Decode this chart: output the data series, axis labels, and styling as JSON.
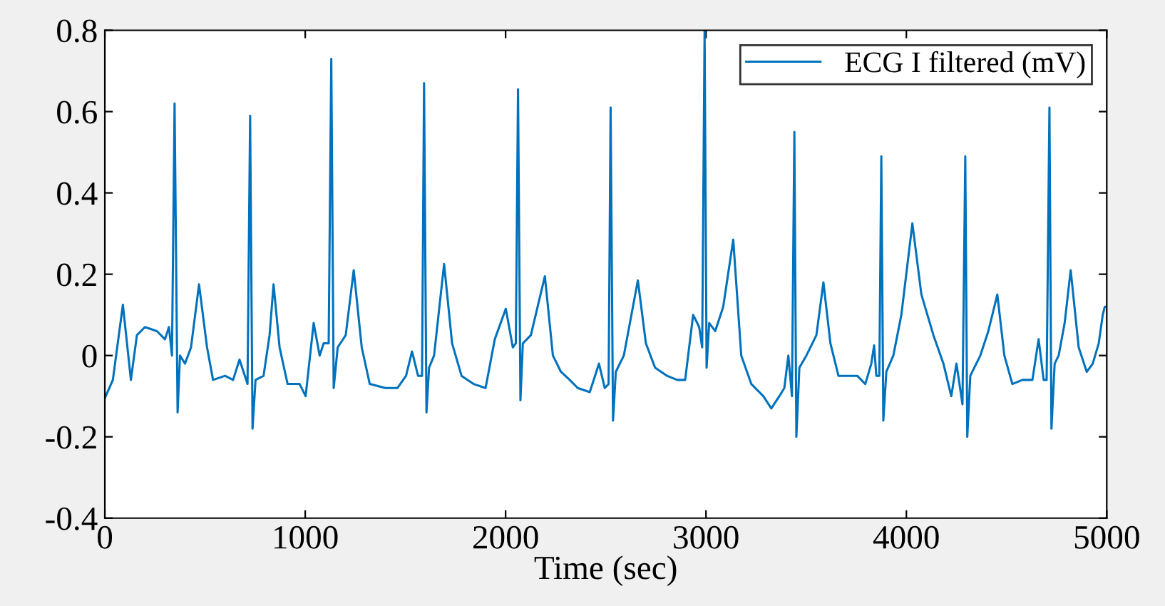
{
  "chart_data": {
    "type": "line",
    "xlabel": "Time (sec)",
    "xlim": [
      0,
      5000
    ],
    "xticks": [
      0,
      1000,
      2000,
      3000,
      4000,
      5000
    ],
    "ylim": [
      -0.4,
      0.8
    ],
    "yticks": [
      -0.4,
      -0.2,
      0,
      0.2,
      0.4,
      0.6,
      0.8
    ],
    "grid": false,
    "legend": "top right",
    "marker": "none",
    "line_style": "solid",
    "series": [
      {
        "name": "ECG I filtered (mV)",
        "color": "#0072bd",
        "x": [
          0,
          40,
          90,
          130,
          160,
          200,
          260,
          300,
          320,
          335,
          348,
          363,
          375,
          400,
          430,
          470,
          510,
          540,
          600,
          640,
          672,
          692,
          712,
          725,
          737,
          752,
          792,
          822,
          842,
          872,
          912,
          972,
          1002,
          1042,
          1072,
          1092,
          1117,
          1130,
          1142,
          1162,
          1202,
          1242,
          1282,
          1322,
          1400,
          1460,
          1503,
          1533,
          1563,
          1583,
          1593,
          1605,
          1618,
          1643,
          1693,
          1733,
          1780,
          1840,
          1900,
          1946,
          2001,
          2036,
          2051,
          2062,
          2074,
          2086,
          2126,
          2196,
          2236,
          2276,
          2320,
          2360,
          2420,
          2466,
          2495,
          2514,
          2524,
          2536,
          2550,
          2590,
          2660,
          2700,
          2746,
          2806,
          2856,
          2896,
          2936,
          2966,
          2981,
          2993,
          3003,
          3016,
          3046,
          3086,
          3136,
          3176,
          3226,
          3286,
          3326,
          3366,
          3391,
          3411,
          3429,
          3441,
          3451,
          3466,
          3501,
          3551,
          3586,
          3621,
          3661,
          3711,
          3755,
          3795,
          3825,
          3839,
          3850,
          3865,
          3875,
          3885,
          3900,
          3935,
          3975,
          4030,
          4075,
          4135,
          4185,
          4224,
          4250,
          4280,
          4294,
          4304,
          4319,
          4369,
          4409,
          4454,
          4489,
          4529,
          4579,
          4629,
          4660,
          4685,
          4700,
          4714,
          4724,
          4740,
          4760,
          4790,
          4820,
          4860,
          4900,
          4930,
          4960,
          4980,
          4990,
          5000
        ],
        "values": [
          -0.105,
          -0.06,
          0.125,
          -0.06,
          0.05,
          0.07,
          0.06,
          0.04,
          0.07,
          0.0,
          0.62,
          -0.14,
          0.0,
          -0.02,
          0.02,
          0.175,
          0.02,
          -0.06,
          -0.05,
          -0.06,
          -0.01,
          -0.04,
          -0.07,
          0.59,
          -0.18,
          -0.06,
          -0.05,
          0.05,
          0.175,
          0.02,
          -0.07,
          -0.07,
          -0.1,
          0.08,
          0.0,
          0.03,
          0.03,
          0.73,
          -0.08,
          0.02,
          0.05,
          0.21,
          0.02,
          -0.07,
          -0.08,
          -0.08,
          -0.05,
          0.01,
          -0.05,
          -0.05,
          0.67,
          -0.14,
          -0.03,
          0.0,
          0.225,
          0.03,
          -0.05,
          -0.07,
          -0.08,
          0.04,
          0.115,
          0.02,
          0.03,
          0.655,
          -0.11,
          0.03,
          0.05,
          0.195,
          0.0,
          -0.04,
          -0.06,
          -0.08,
          -0.09,
          -0.02,
          -0.08,
          -0.07,
          0.61,
          -0.16,
          -0.04,
          0.0,
          0.185,
          0.03,
          -0.03,
          -0.05,
          -0.06,
          -0.06,
          0.1,
          0.07,
          0.02,
          0.8,
          -0.03,
          0.08,
          0.06,
          0.12,
          0.285,
          0.0,
          -0.07,
          -0.1,
          -0.13,
          -0.1,
          -0.08,
          0.0,
          -0.1,
          0.55,
          -0.2,
          -0.03,
          0.0,
          0.05,
          0.18,
          0.03,
          -0.05,
          -0.05,
          -0.05,
          -0.07,
          -0.02,
          0.025,
          -0.05,
          -0.05,
          0.49,
          -0.16,
          -0.04,
          0.0,
          0.1,
          0.325,
          0.15,
          0.05,
          -0.02,
          -0.1,
          -0.02,
          -0.12,
          0.49,
          -0.2,
          -0.05,
          0.0,
          0.06,
          0.15,
          0.0,
          -0.07,
          -0.06,
          -0.06,
          0.04,
          -0.06,
          -0.06,
          0.61,
          -0.18,
          -0.02,
          0.0,
          0.08,
          0.21,
          0.02,
          -0.04,
          -0.02,
          0.03,
          0.1,
          0.12,
          0.12
        ]
      }
    ]
  }
}
